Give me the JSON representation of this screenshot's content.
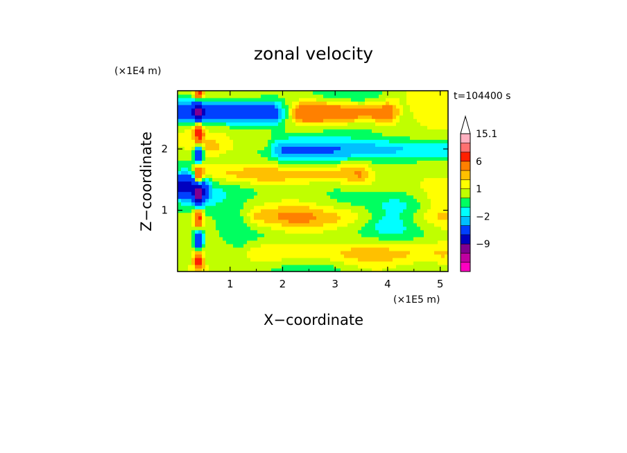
{
  "chart_data": {
    "type": "heatmap",
    "title": "zonal velocity",
    "xlabel": "X−coordinate",
    "ylabel": "Z−coordinate",
    "x_multiplier": "(×1E5 m)",
    "y_multiplier": "(×1E4 m)",
    "time_label": "t=104400 s",
    "xlim": [
      0,
      5.15
    ],
    "ylim": [
      0,
      2.95
    ],
    "x_ticks": [
      1,
      2,
      3,
      4,
      5
    ],
    "y_ticks": [
      1,
      2
    ],
    "x_tick_labels": [
      "1",
      "2",
      "3",
      "4",
      "5"
    ],
    "y_tick_labels": [
      "1",
      "2"
    ],
    "grid": false,
    "colorbar": {
      "levels": [
        -15,
        -12,
        -9,
        -6,
        -3,
        -2,
        -1,
        0,
        1,
        2,
        3,
        6,
        9,
        12,
        15.1
      ],
      "labeled_levels": [
        15.1,
        6,
        1,
        -2,
        -9
      ],
      "labels": [
        "15.1",
        "6",
        "1",
        "−2",
        "−9"
      ],
      "colors": [
        "#ff00c0",
        "#c000a0",
        "#800090",
        "#0000c0",
        "#0040ff",
        "#00c0ff",
        "#00ffff",
        "#00ff60",
        "#c0ff00",
        "#ffff00",
        "#ffc000",
        "#ff8000",
        "#ff2000",
        "#ff7070",
        "#ffb0c0"
      ],
      "extend_top": true
    },
    "bands": [
      {
        "z": 2.6,
        "u": -6,
        "x_from": 0.0,
        "x_to": 1.8
      },
      {
        "z": 2.6,
        "u": 6,
        "x_from": 2.4,
        "x_to": 4.0
      },
      {
        "z": 2.0,
        "u": -3,
        "x_from": 2.0,
        "x_to": 5.1
      },
      {
        "z": 1.6,
        "u": 3,
        "x_from": 0.5,
        "x_to": 3.5
      },
      {
        "z": 1.4,
        "u": -6,
        "x_from": 0.0,
        "x_to": 0.4
      },
      {
        "z": 0.9,
        "u": 2,
        "x_from": 1.5,
        "x_to": 5.1
      },
      {
        "z": 0.3,
        "u": 2,
        "x_from": 1.5,
        "x_to": 5.1
      }
    ]
  }
}
